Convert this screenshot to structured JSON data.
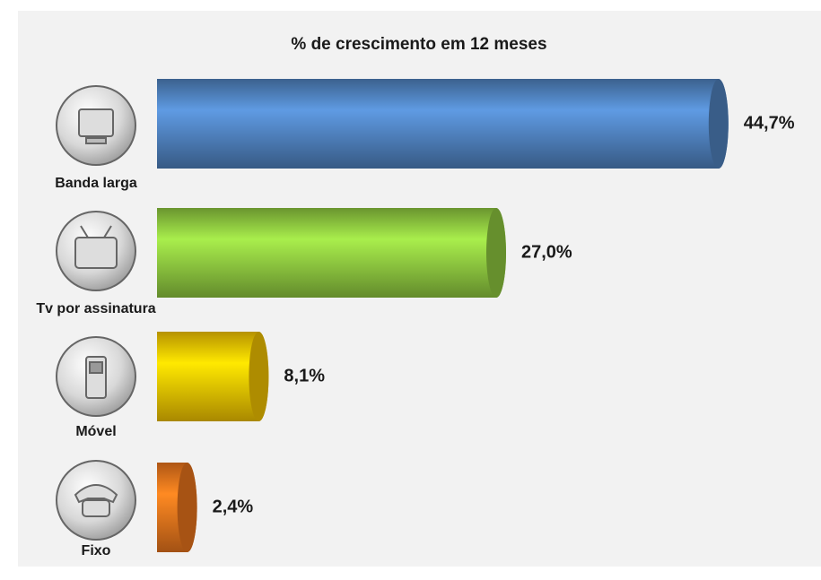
{
  "chart_data": {
    "type": "bar",
    "orientation": "horizontal",
    "title": "% de crescimento em 12 meses",
    "categories": [
      "Banda larga",
      "Tv por assinatura",
      "Móvel",
      "Fixo"
    ],
    "values": [
      44.7,
      27.0,
      8.1,
      2.4
    ],
    "value_labels": [
      "44,7%",
      "27,0%",
      "8,1%",
      "2,4%"
    ],
    "colors": [
      "#4f81bd",
      "#8dc63f",
      "#f2c200",
      "#e8731c"
    ]
  }
}
